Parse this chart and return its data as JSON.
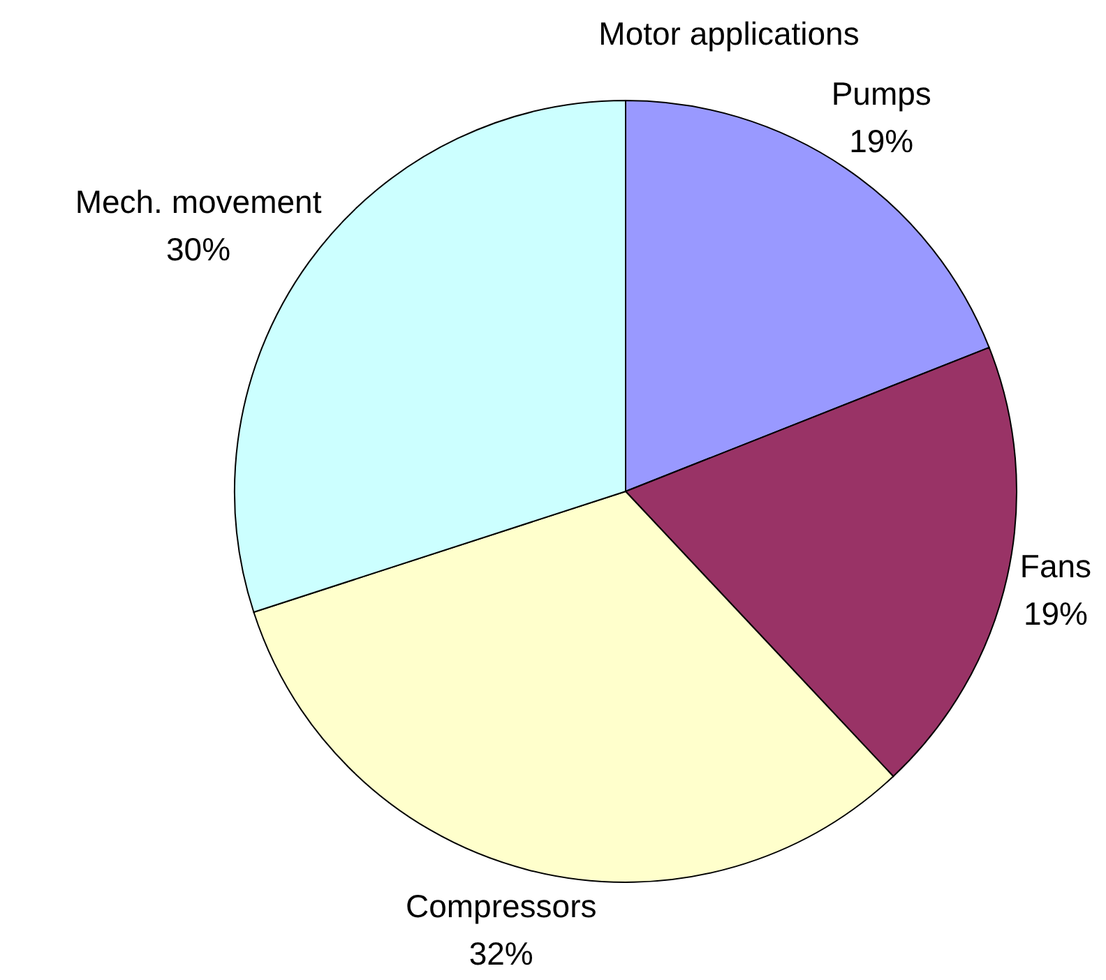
{
  "chart_data": {
    "type": "pie",
    "title": "Motor applications",
    "categories": [
      "Pumps",
      "Fans",
      "Compressors",
      "Mech. movement"
    ],
    "values": [
      19,
      19,
      32,
      30
    ],
    "value_labels": [
      "19%",
      "19%",
      "32%",
      "30%"
    ],
    "colors": [
      "#9999ff",
      "#993366",
      "#ffffcc",
      "#ccffff"
    ]
  }
}
